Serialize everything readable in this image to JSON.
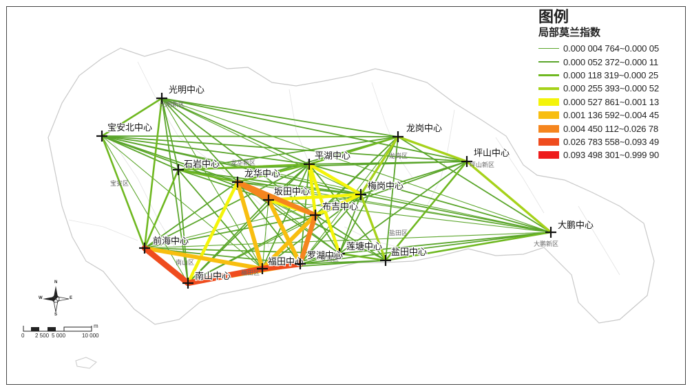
{
  "legend": {
    "title": "图例",
    "subtitle": "局部莫兰指数",
    "classes": [
      {
        "label": "0.000 004 764~0.000 05",
        "color": "#5aa52a",
        "weight": 1
      },
      {
        "label": "0.000 052 372~0.000 11",
        "color": "#5aa52a",
        "weight": 2
      },
      {
        "label": "0.000 118 319~0.000 25",
        "color": "#6fb820",
        "weight": 3
      },
      {
        "label": "0.000 255 393~0.000 52",
        "color": "#a6d21a",
        "weight": 4
      },
      {
        "label": "0.000 527 861~0.001 13",
        "color": "#f4f40a",
        "weight": 5
      },
      {
        "label": "0.001 136 592~0.004 45",
        "color": "#f8be10",
        "weight": 6
      },
      {
        "label": "0.004 450 112~0.026 78",
        "color": "#f5851e",
        "weight": 7
      },
      {
        "label": "0.026 783 558~0.093 49",
        "color": "#ef4c1e",
        "weight": 8
      },
      {
        "label": "0.093 498 301~0.999 90",
        "color": "#ee1c1c",
        "weight": 9
      }
    ]
  },
  "centers": [
    {
      "id": "guangming",
      "name": "光明中心"
    },
    {
      "id": "baoanbei",
      "name": "宝安北中心"
    },
    {
      "id": "longgang",
      "name": "龙岗中心"
    },
    {
      "id": "pingshan",
      "name": "坪山中心"
    },
    {
      "id": "shiyan",
      "name": "石岩中心"
    },
    {
      "id": "longhua",
      "name": "龙华中心"
    },
    {
      "id": "pinghu",
      "name": "平湖中心"
    },
    {
      "id": "bantian",
      "name": "坂田中心"
    },
    {
      "id": "meilan",
      "name": "梅岗中心"
    },
    {
      "id": "buji",
      "name": "布吉中心"
    },
    {
      "id": "dapeng",
      "name": "大鹏中心"
    },
    {
      "id": "qianhai",
      "name": "前海中心"
    },
    {
      "id": "liantang",
      "name": "莲塘中心"
    },
    {
      "id": "yantian",
      "name": "盐田中心"
    },
    {
      "id": "futian",
      "name": "福田中心"
    },
    {
      "id": "luohu",
      "name": "罗湖中心"
    },
    {
      "id": "nanshan",
      "name": "南山中心"
    }
  ],
  "links": [
    {
      "a": "qianhai",
      "b": "nanshan",
      "cls": 8
    },
    {
      "a": "nanshan",
      "b": "futian",
      "cls": 8
    },
    {
      "a": "futian",
      "b": "luohu",
      "cls": 8
    },
    {
      "a": "luohu",
      "b": "buji",
      "cls": 7
    },
    {
      "a": "longhua",
      "b": "buji",
      "cls": 7
    },
    {
      "a": "longhua",
      "b": "bantian",
      "cls": 7
    },
    {
      "a": "longhua",
      "b": "futian",
      "cls": 6
    },
    {
      "a": "bantian",
      "b": "luohu",
      "cls": 6
    },
    {
      "a": "buji",
      "b": "futian",
      "cls": 6
    },
    {
      "a": "qianhai",
      "b": "futian",
      "cls": 6
    },
    {
      "a": "nanshan",
      "b": "luohu",
      "cls": 6
    },
    {
      "a": "longhua",
      "b": "nanshan",
      "cls": 5
    },
    {
      "a": "bantian",
      "b": "meilan",
      "cls": 5
    },
    {
      "a": "pinghu",
      "b": "meilan",
      "cls": 5
    },
    {
      "a": "pinghu",
      "b": "liantang",
      "cls": 5
    },
    {
      "a": "buji",
      "b": "meilan",
      "cls": 5
    },
    {
      "a": "bantian",
      "b": "buji",
      "cls": 5
    },
    {
      "a": "pinghu",
      "b": "buji",
      "cls": 5
    },
    {
      "a": "meilan",
      "b": "yantian",
      "cls": 4
    },
    {
      "a": "longgang",
      "b": "pingshan",
      "cls": 4
    },
    {
      "a": "pingshan",
      "b": "dapeng",
      "cls": 4
    },
    {
      "a": "longgang",
      "b": "meilan",
      "cls": 4
    },
    {
      "a": "pinghu",
      "b": "longgang",
      "cls": 3
    },
    {
      "a": "guangming",
      "b": "baoanbei",
      "cls": 3
    },
    {
      "a": "guangming",
      "b": "qianhai",
      "cls": 3
    },
    {
      "a": "baoanbei",
      "b": "qianhai",
      "cls": 3
    },
    {
      "a": "shiyan",
      "b": "longhua",
      "cls": 3
    },
    {
      "a": "shiyan",
      "b": "qianhai",
      "cls": 3
    },
    {
      "a": "shiyan",
      "b": "pinghu",
      "cls": 3
    },
    {
      "a": "longhua",
      "b": "pinghu",
      "cls": 3
    },
    {
      "a": "liantang",
      "b": "yantian",
      "cls": 3
    },
    {
      "a": "yantian",
      "b": "dapeng",
      "cls": 3
    },
    {
      "a": "pingshan",
      "b": "yantian",
      "cls": 3
    },
    {
      "a": "guangming",
      "b": "longgang",
      "cls": 2
    },
    {
      "a": "guangming",
      "b": "pinghu",
      "cls": 2
    },
    {
      "a": "guangming",
      "b": "shiyan",
      "cls": 2
    },
    {
      "a": "guangming",
      "b": "longhua",
      "cls": 2
    },
    {
      "a": "guangming",
      "b": "buji",
      "cls": 2
    },
    {
      "a": "guangming",
      "b": "nanshan",
      "cls": 2
    },
    {
      "a": "guangming",
      "b": "pingshan",
      "cls": 2
    },
    {
      "a": "baoanbei",
      "b": "shiyan",
      "cls": 2
    },
    {
      "a": "baoanbei",
      "b": "longhua",
      "cls": 2
    },
    {
      "a": "baoanbei",
      "b": "pinghu",
      "cls": 2
    },
    {
      "a": "baoanbei",
      "b": "longgang",
      "cls": 2
    },
    {
      "a": "baoanbei",
      "b": "pingshan",
      "cls": 2
    },
    {
      "a": "baoanbei",
      "b": "buji",
      "cls": 2
    },
    {
      "a": "baoanbei",
      "b": "meilan",
      "cls": 2
    },
    {
      "a": "longgang",
      "b": "buji",
      "cls": 2
    },
    {
      "a": "longgang",
      "b": "liantang",
      "cls": 2
    },
    {
      "a": "longgang",
      "b": "yantian",
      "cls": 2
    },
    {
      "a": "longgang",
      "b": "dapeng",
      "cls": 2
    },
    {
      "a": "longgang",
      "b": "shiyan",
      "cls": 2
    },
    {
      "a": "longgang",
      "b": "longhua",
      "cls": 2
    },
    {
      "a": "pingshan",
      "b": "pinghu",
      "cls": 2
    },
    {
      "a": "pingshan",
      "b": "meilan",
      "cls": 2
    },
    {
      "a": "pingshan",
      "b": "buji",
      "cls": 2
    },
    {
      "a": "pingshan",
      "b": "liantang",
      "cls": 2
    },
    {
      "a": "pingshan",
      "b": "shiyan",
      "cls": 2
    },
    {
      "a": "dapeng",
      "b": "meilan",
      "cls": 2
    },
    {
      "a": "dapeng",
      "b": "liantang",
      "cls": 2
    },
    {
      "a": "dapeng",
      "b": "pinghu",
      "cls": 2
    },
    {
      "a": "dapeng",
      "b": "luohu",
      "cls": 2
    },
    {
      "a": "shiyan",
      "b": "buji",
      "cls": 2
    },
    {
      "a": "shiyan",
      "b": "futian",
      "cls": 2
    },
    {
      "a": "shiyan",
      "b": "nanshan",
      "cls": 2
    },
    {
      "a": "shiyan",
      "b": "meilan",
      "cls": 2
    },
    {
      "a": "qianhai",
      "b": "pinghu",
      "cls": 2
    },
    {
      "a": "qianhai",
      "b": "buji",
      "cls": 2
    },
    {
      "a": "qianhai",
      "b": "longhua",
      "cls": 2
    },
    {
      "a": "qianhai",
      "b": "liantang",
      "cls": 2
    },
    {
      "a": "qianhai",
      "b": "luohu",
      "cls": 2
    },
    {
      "a": "nanshan",
      "b": "pinghu",
      "cls": 2
    },
    {
      "a": "nanshan",
      "b": "buji",
      "cls": 2
    },
    {
      "a": "nanshan",
      "b": "liantang",
      "cls": 2
    },
    {
      "a": "nanshan",
      "b": "bantian",
      "cls": 2
    },
    {
      "a": "futian",
      "b": "pinghu",
      "cls": 2
    },
    {
      "a": "futian",
      "b": "meilan",
      "cls": 2
    },
    {
      "a": "futian",
      "b": "liantang",
      "cls": 2
    },
    {
      "a": "futian",
      "b": "yantian",
      "cls": 2
    },
    {
      "a": "luohu",
      "b": "pinghu",
      "cls": 2
    },
    {
      "a": "luohu",
      "b": "meilan",
      "cls": 2
    },
    {
      "a": "luohu",
      "b": "liantang",
      "cls": 2
    },
    {
      "a": "luohu",
      "b": "yantian",
      "cls": 2
    },
    {
      "a": "buji",
      "b": "liantang",
      "cls": 2
    },
    {
      "a": "buji",
      "b": "yantian",
      "cls": 2
    },
    {
      "a": "longhua",
      "b": "meilan",
      "cls": 2
    },
    {
      "a": "longhua",
      "b": "liantang",
      "cls": 2
    },
    {
      "a": "longhua",
      "b": "luohu",
      "cls": 2
    },
    {
      "a": "meilan",
      "b": "liantang",
      "cls": 2
    },
    {
      "a": "pinghu",
      "b": "yantian",
      "cls": 2
    },
    {
      "a": "pinghu",
      "b": "bantian",
      "cls": 2
    },
    {
      "a": "guangming",
      "b": "futian",
      "cls": 1
    },
    {
      "a": "guangming",
      "b": "meilan",
      "cls": 1
    },
    {
      "a": "guangming",
      "b": "dapeng",
      "cls": 1
    },
    {
      "a": "baoanbei",
      "b": "dapeng",
      "cls": 1
    },
    {
      "a": "baoanbei",
      "b": "futian",
      "cls": 1
    },
    {
      "a": "baoanbei",
      "b": "nanshan",
      "cls": 1
    },
    {
      "a": "shiyan",
      "b": "dapeng",
      "cls": 1
    },
    {
      "a": "qianhai",
      "b": "dapeng",
      "cls": 1
    },
    {
      "a": "qianhai",
      "b": "meilan",
      "cls": 1
    },
    {
      "a": "nanshan",
      "b": "meilan",
      "cls": 1
    },
    {
      "a": "longhua",
      "b": "dapeng",
      "cls": 1
    },
    {
      "a": "longhua",
      "b": "yantian",
      "cls": 1
    },
    {
      "a": "bantian",
      "b": "futian",
      "cls": 1
    },
    {
      "a": "bantian",
      "b": "liantang",
      "cls": 1
    },
    {
      "a": "bantian",
      "b": "yantian",
      "cls": 1
    },
    {
      "a": "bantian",
      "b": "dapeng",
      "cls": 1
    },
    {
      "a": "longgang",
      "b": "futian",
      "cls": 1
    },
    {
      "a": "longgang",
      "b": "luohu",
      "cls": 1
    },
    {
      "a": "futian",
      "b": "dapeng",
      "cls": 1
    }
  ],
  "district_labels": [
    "光明新区",
    "宝安区",
    "龙华新区",
    "龙岗区",
    "坪山新区",
    "大鹏新区",
    "盐田区",
    "南山区",
    "福田区",
    "罗湖区"
  ],
  "compass": {
    "n": "N",
    "s": "S",
    "e": "E",
    "w": "W"
  },
  "scale": {
    "ticks": [
      "0",
      "2 500",
      "5 000",
      "10 000"
    ],
    "unit": "m"
  }
}
